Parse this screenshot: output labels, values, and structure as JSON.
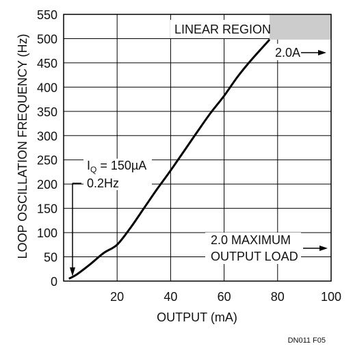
{
  "chart_data": {
    "type": "line",
    "xlabel": "OUTPUT (mA)",
    "ylabel": "LOOP OSCILLATION FREQUENCY (Hz)",
    "xlim": [
      0,
      100
    ],
    "ylim": [
      0,
      550
    ],
    "x_ticks": [
      20,
      40,
      60,
      80,
      100
    ],
    "y_ticks": [
      0,
      50,
      100,
      150,
      200,
      250,
      300,
      350,
      400,
      450,
      500,
      550
    ],
    "grid": true,
    "series": [
      {
        "x": [
          2,
          5,
          10,
          15,
          20,
          25,
          30,
          35,
          40,
          45,
          50,
          55,
          60,
          65,
          70,
          77
        ],
        "y": [
          5,
          14,
          35,
          58,
          75,
          110,
          150,
          190,
          228,
          268,
          308,
          347,
          382,
          421,
          455,
          498
        ]
      }
    ],
    "linear_region": {
      "label": "LINEAR REGION",
      "x_from": 77,
      "x_to": 100,
      "y_from": 498,
      "y_to": 550
    },
    "annotations": {
      "iq_prefix": "I",
      "iq_sub": "Q",
      "iq_suffix": " = 150µA",
      "freq": "0.2Hz",
      "current": "2.0A",
      "max_line1": "2.0 MAXIMUM",
      "max_line2": "OUTPUT LOAD"
    },
    "figure_code": "DN011 F05",
    "colors": {
      "curve": "#000000",
      "region": "#cccccc",
      "grid": "#000000"
    }
  }
}
